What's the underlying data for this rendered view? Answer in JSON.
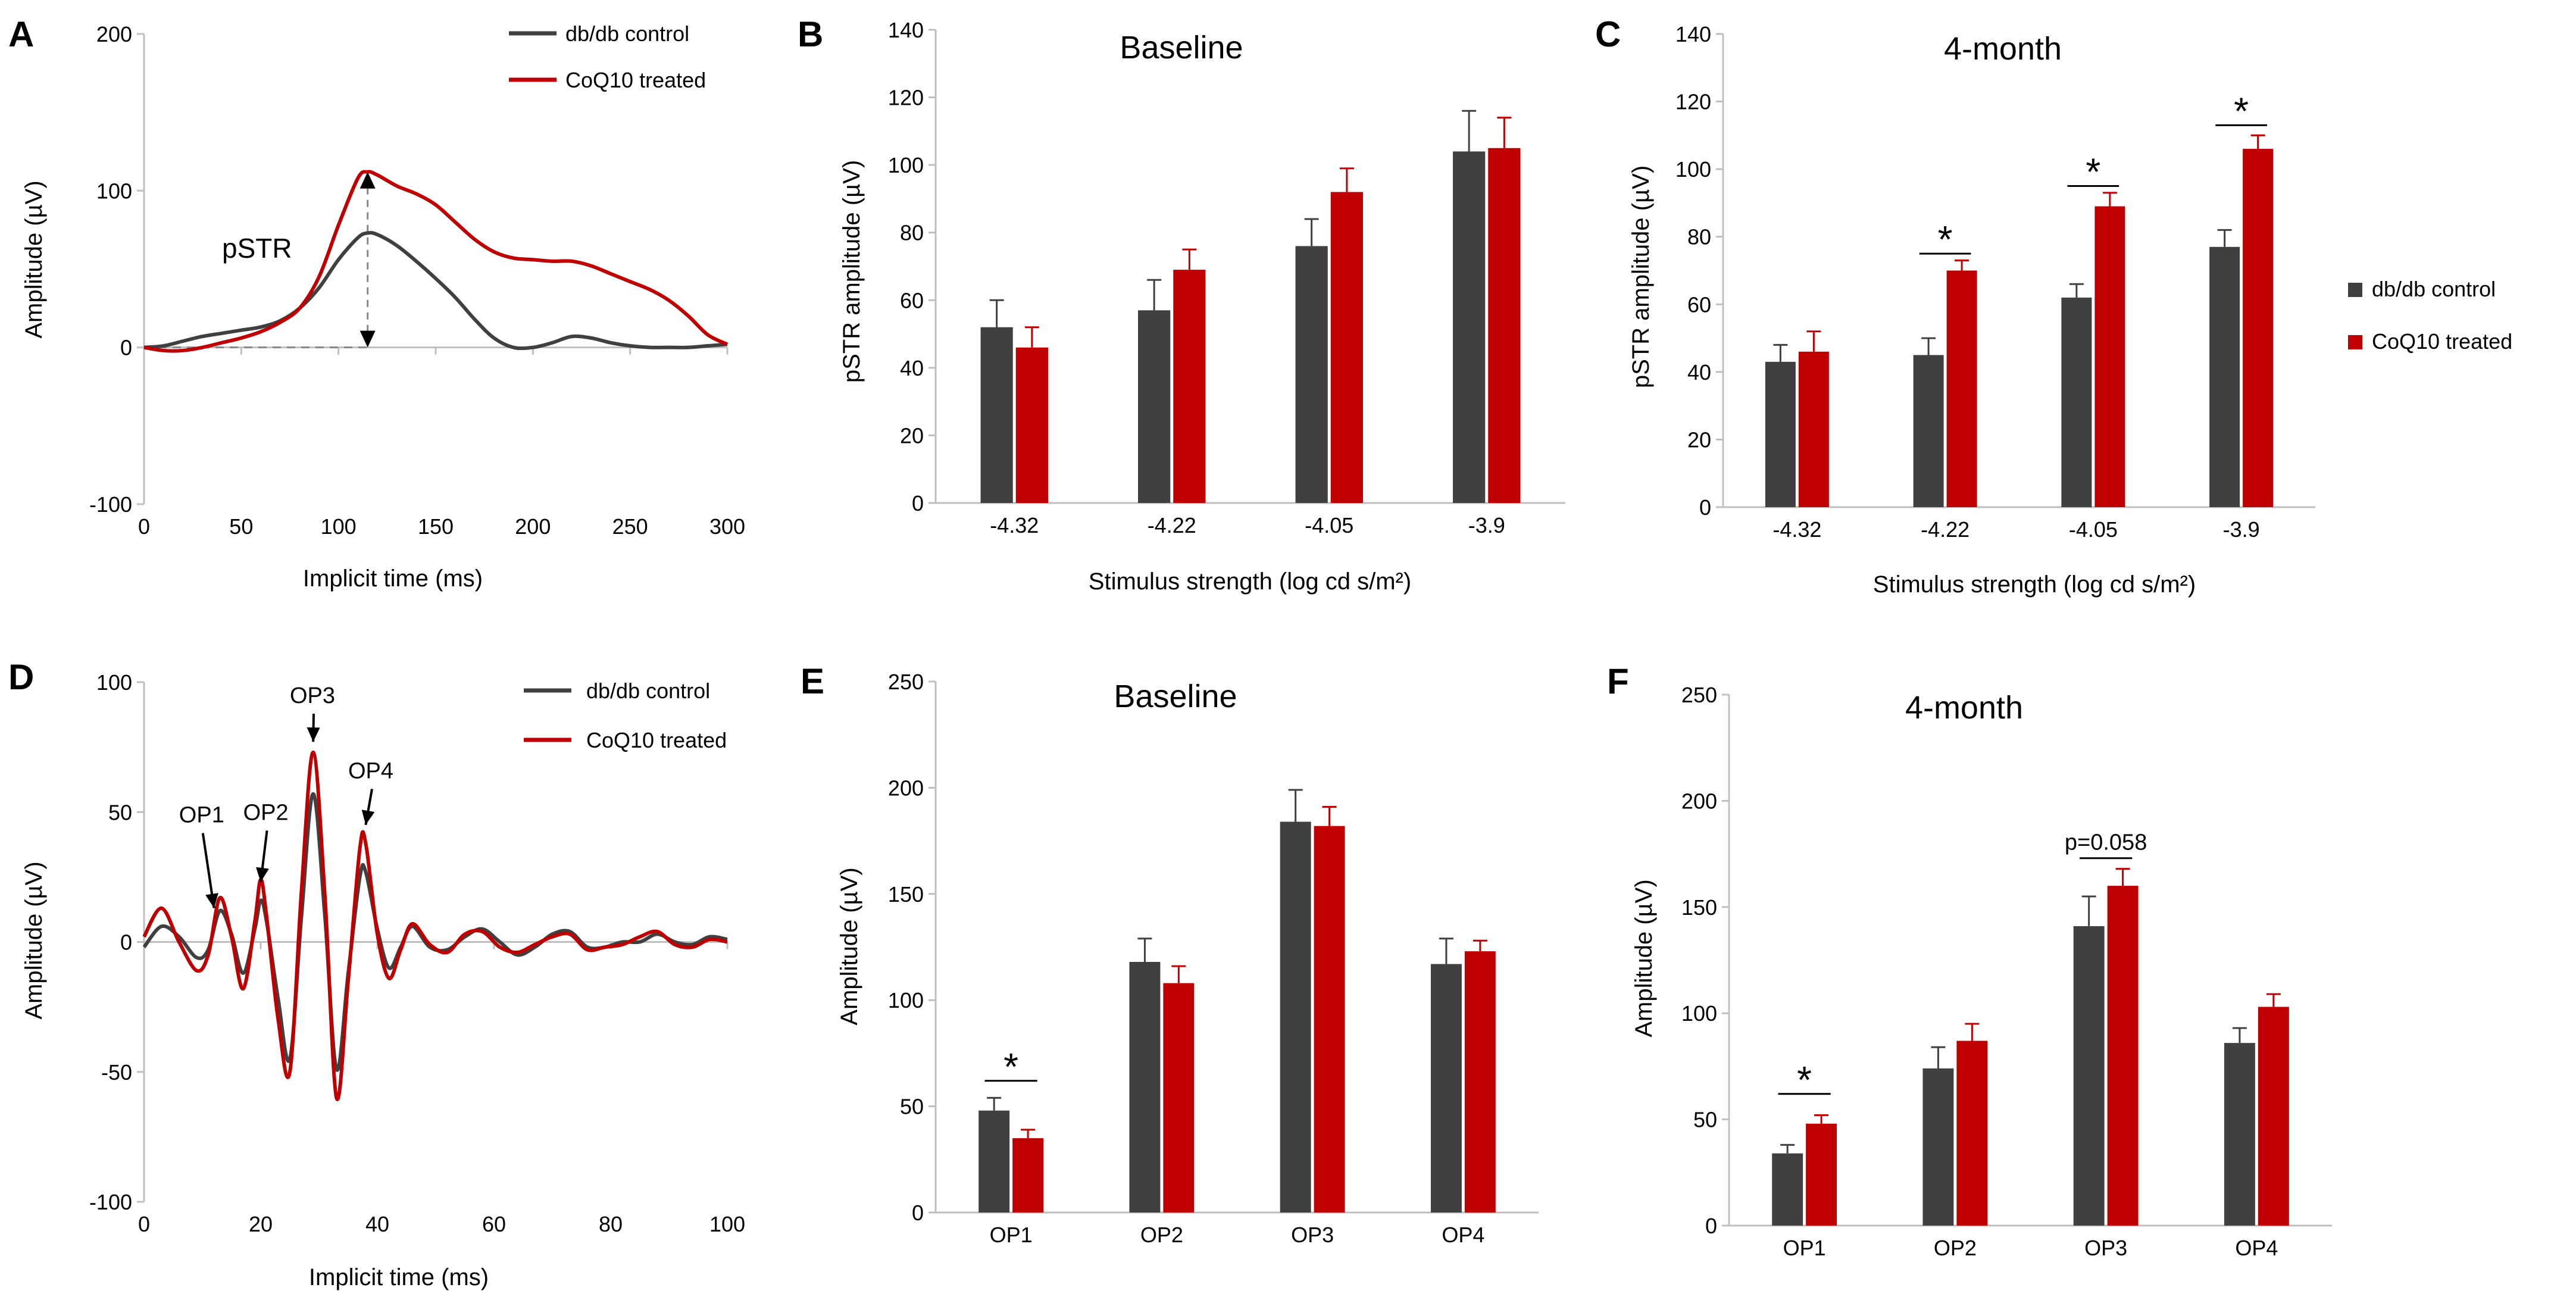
{
  "figure": {
    "legend": {
      "control": "db/db control",
      "treated": "CoQ10 treated",
      "control_color": "#404040",
      "treated_color": "#c00000"
    }
  },
  "chart_data": [
    {
      "panel": "A",
      "type": "line",
      "title": "",
      "xlabel": "Implicit time (ms)",
      "ylabel": "Amplitude (µV)",
      "xlim": [
        0,
        300
      ],
      "ylim": [
        -100,
        200
      ],
      "xticks": [
        0,
        50,
        100,
        150,
        200,
        250,
        300
      ],
      "yticks": [
        -100,
        0,
        100,
        200
      ],
      "legend_position": "top-right",
      "series": [
        {
          "name": "db/db control",
          "color": "#404040",
          "x": [
            0,
            10,
            20,
            30,
            40,
            50,
            60,
            70,
            80,
            90,
            100,
            110,
            115,
            120,
            130,
            140,
            150,
            160,
            170,
            180,
            190,
            200,
            210,
            220,
            230,
            240,
            250,
            260,
            270,
            280,
            290,
            300
          ],
          "y": [
            0,
            1,
            4,
            7,
            9,
            11,
            13,
            17,
            25,
            38,
            56,
            70,
            73,
            72,
            65,
            55,
            44,
            32,
            18,
            6,
            0,
            0,
            3,
            7,
            6,
            3,
            1,
            0,
            0,
            0,
            1,
            2
          ]
        },
        {
          "name": "CoQ10 treated",
          "color": "#c00000",
          "x": [
            0,
            10,
            20,
            30,
            40,
            50,
            60,
            70,
            80,
            90,
            100,
            110,
            115,
            120,
            130,
            140,
            150,
            160,
            170,
            180,
            190,
            200,
            210,
            220,
            230,
            240,
            250,
            260,
            270,
            280,
            290,
            300
          ],
          "y": [
            0,
            -2,
            -2,
            0,
            3,
            6,
            10,
            16,
            25,
            45,
            78,
            108,
            112,
            110,
            103,
            98,
            91,
            80,
            69,
            61,
            57,
            56,
            55,
            55,
            52,
            47,
            42,
            37,
            30,
            20,
            8,
            2
          ]
        }
      ],
      "annotations": [
        {
          "text": "pSTR",
          "x": 58,
          "y": 60
        },
        {
          "text": "",
          "type": "double-arrow",
          "x": 115,
          "y_from": 0,
          "y_to": 112
        },
        {
          "text": "",
          "type": "dashed-baseline",
          "x_from": 0,
          "x_to": 115,
          "y": 0
        }
      ]
    },
    {
      "panel": "B",
      "type": "bar",
      "title": "Baseline",
      "xlabel": "Stimulus strength (log cd s/m²)",
      "ylabel": "pSTR amplitude (µV)",
      "ylim": [
        0,
        140
      ],
      "yticks": [
        0,
        20,
        40,
        60,
        80,
        100,
        120,
        140
      ],
      "categories": [
        "-4.32",
        "-4.22",
        "-4.05",
        "-3.9"
      ],
      "series": [
        {
          "name": "db/db control",
          "color": "#404040",
          "values": [
            52,
            57,
            76,
            104
          ],
          "errors": [
            8,
            9,
            8,
            12
          ]
        },
        {
          "name": "CoQ10 treated",
          "color": "#c00000",
          "values": [
            46,
            69,
            92,
            105
          ],
          "errors": [
            6,
            6,
            7,
            9
          ]
        }
      ],
      "annotations": []
    },
    {
      "panel": "C",
      "type": "bar",
      "title": "4-month",
      "xlabel": "Stimulus strength (log cd s/m²)",
      "ylabel": "pSTR amplitude (µV)",
      "ylim": [
        0,
        140
      ],
      "yticks": [
        0,
        20,
        40,
        60,
        80,
        100,
        120,
        140
      ],
      "categories": [
        "-4.32",
        "-4.22",
        "-4.05",
        "-3.9"
      ],
      "legend_position": "right",
      "series": [
        {
          "name": "db/db control",
          "color": "#404040",
          "values": [
            43,
            45,
            62,
            77
          ],
          "errors": [
            5,
            5,
            4,
            5
          ]
        },
        {
          "name": "CoQ10 treated",
          "color": "#c00000",
          "values": [
            46,
            70,
            89,
            106
          ],
          "errors": [
            6,
            3,
            4,
            4
          ]
        }
      ],
      "annotations": [
        {
          "text": "*",
          "category": "-4.22",
          "y": 75
        },
        {
          "text": "*",
          "category": "-4.05",
          "y": 95
        },
        {
          "text": "*",
          "category": "-3.9",
          "y": 113
        }
      ]
    },
    {
      "panel": "D",
      "type": "line",
      "title": "",
      "xlabel": "Implicit time (ms)",
      "ylabel": "Amplitude (µV)",
      "xlim": [
        0,
        100
      ],
      "ylim": [
        -100,
        100
      ],
      "xticks": [
        0,
        20,
        40,
        60,
        80,
        100
      ],
      "yticks": [
        -100,
        -50,
        0,
        50,
        100
      ],
      "legend_position": "top-right",
      "series": [
        {
          "name": "db/db control",
          "color": "#404040",
          "x": [
            0,
            3,
            6,
            9,
            11,
            13,
            15,
            17,
            19,
            20,
            21,
            23,
            25,
            27,
            29,
            31,
            33,
            35,
            37,
            38,
            40,
            42,
            44,
            46,
            49,
            52,
            55,
            58,
            61,
            64,
            67,
            70,
            73,
            76,
            79,
            82,
            85,
            88,
            91,
            94,
            97,
            100
          ],
          "y": [
            -2,
            6,
            2,
            -6,
            -3,
            12,
            3,
            -12,
            5,
            16,
            8,
            -22,
            -45,
            10,
            57,
            10,
            -49,
            -12,
            25,
            27,
            5,
            -10,
            -2,
            6,
            -2,
            -3,
            2,
            5,
            0,
            -5,
            -2,
            3,
            4,
            -2,
            -2,
            0,
            0,
            3,
            0,
            -1,
            2,
            1
          ]
        },
        {
          "name": "CoQ10 treated",
          "color": "#c00000",
          "x": [
            0,
            3,
            6,
            9,
            11,
            13,
            15,
            17,
            19,
            20,
            21,
            23,
            25,
            27,
            29,
            31,
            33,
            35,
            37,
            38,
            40,
            42,
            44,
            46,
            49,
            52,
            55,
            58,
            61,
            64,
            67,
            70,
            73,
            76,
            79,
            82,
            85,
            88,
            91,
            94,
            97,
            100
          ],
          "y": [
            2,
            13,
            0,
            -11,
            -5,
            17,
            2,
            -18,
            8,
            24,
            10,
            -30,
            -50,
            20,
            73,
            18,
            -60,
            -15,
            36,
            38,
            3,
            -14,
            -3,
            7,
            -1,
            -4,
            3,
            4,
            -2,
            -4,
            -1,
            2,
            3,
            -3,
            -2,
            -1,
            2,
            4,
            -1,
            -2,
            1,
            0
          ]
        }
      ],
      "annotations": [
        {
          "text": "OP1",
          "x": 6,
          "y": 46
        },
        {
          "text": "OP2",
          "x": 17,
          "y": 47
        },
        {
          "text": "OP3",
          "x": 25,
          "y": 92
        },
        {
          "text": "OP4",
          "x": 35,
          "y": 63
        }
      ]
    },
    {
      "panel": "E",
      "type": "bar",
      "title": "Baseline",
      "xlabel": "",
      "ylabel": "Amplitude (µV)",
      "ylim": [
        0,
        250
      ],
      "yticks": [
        0,
        50,
        100,
        150,
        200,
        250
      ],
      "categories": [
        "OP1",
        "OP2",
        "OP3",
        "OP4"
      ],
      "series": [
        {
          "name": "db/db control",
          "color": "#404040",
          "values": [
            48,
            118,
            184,
            117
          ],
          "errors": [
            6,
            11,
            15,
            12
          ]
        },
        {
          "name": "CoQ10 treated",
          "color": "#c00000",
          "values": [
            35,
            108,
            182,
            123
          ],
          "errors": [
            4,
            8,
            9,
            5
          ]
        }
      ],
      "annotations": [
        {
          "text": "*",
          "category": "OP1",
          "y": 62
        }
      ]
    },
    {
      "panel": "F",
      "type": "bar",
      "title": "4-month",
      "xlabel": "",
      "ylabel": "Amplitude (µV)",
      "ylim": [
        0,
        250
      ],
      "yticks": [
        0,
        50,
        100,
        150,
        200,
        250
      ],
      "categories": [
        "OP1",
        "OP2",
        "OP3",
        "OP4"
      ],
      "series": [
        {
          "name": "db/db control",
          "color": "#404040",
          "values": [
            34,
            74,
            141,
            86
          ],
          "errors": [
            4,
            10,
            14,
            7
          ]
        },
        {
          "name": "CoQ10 treated",
          "color": "#c00000",
          "values": [
            48,
            87,
            160,
            103
          ],
          "errors": [
            4,
            8,
            8,
            6
          ]
        }
      ],
      "annotations": [
        {
          "text": "*",
          "category": "OP1",
          "y": 62
        },
        {
          "text": "p=0.058",
          "category": "OP3",
          "y": 173
        }
      ]
    }
  ]
}
